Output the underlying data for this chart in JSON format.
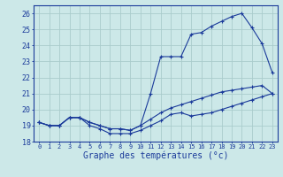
{
  "xlabel": "Graphe des températures (°c)",
  "background_color": "#cce8e8",
  "grid_color": "#aacccc",
  "line_color": "#1a3a9a",
  "hours": [
    0,
    1,
    2,
    3,
    4,
    5,
    6,
    7,
    8,
    9,
    10,
    11,
    12,
    13,
    14,
    15,
    16,
    17,
    18,
    19,
    20,
    21,
    22,
    23
  ],
  "temp_min": [
    19.2,
    19.0,
    19.0,
    19.5,
    19.5,
    19.0,
    18.8,
    18.5,
    18.5,
    18.5,
    18.7,
    19.0,
    19.3,
    19.7,
    19.8,
    19.6,
    19.7,
    19.8,
    20.0,
    20.2,
    20.4,
    20.6,
    20.8,
    21.0
  ],
  "temp_max": [
    19.2,
    19.0,
    19.0,
    19.5,
    19.5,
    19.2,
    19.0,
    18.8,
    18.8,
    18.7,
    19.0,
    21.0,
    23.3,
    23.3,
    23.3,
    24.7,
    24.8,
    25.2,
    25.5,
    25.8,
    26.0,
    25.1,
    24.1,
    22.3
  ],
  "temp_cur": [
    19.2,
    19.0,
    19.0,
    19.5,
    19.5,
    19.2,
    19.0,
    18.8,
    18.8,
    18.7,
    19.0,
    19.4,
    19.8,
    20.1,
    20.3,
    20.5,
    20.7,
    20.9,
    21.1,
    21.2,
    21.3,
    21.4,
    21.5,
    21.0
  ],
  "ylim": [
    18.0,
    26.5
  ],
  "yticks": [
    18,
    19,
    20,
    21,
    22,
    23,
    24,
    25,
    26
  ],
  "ylabel_fontsize": 6,
  "xlabel_fontsize": 7,
  "tick_fontsize": 5
}
